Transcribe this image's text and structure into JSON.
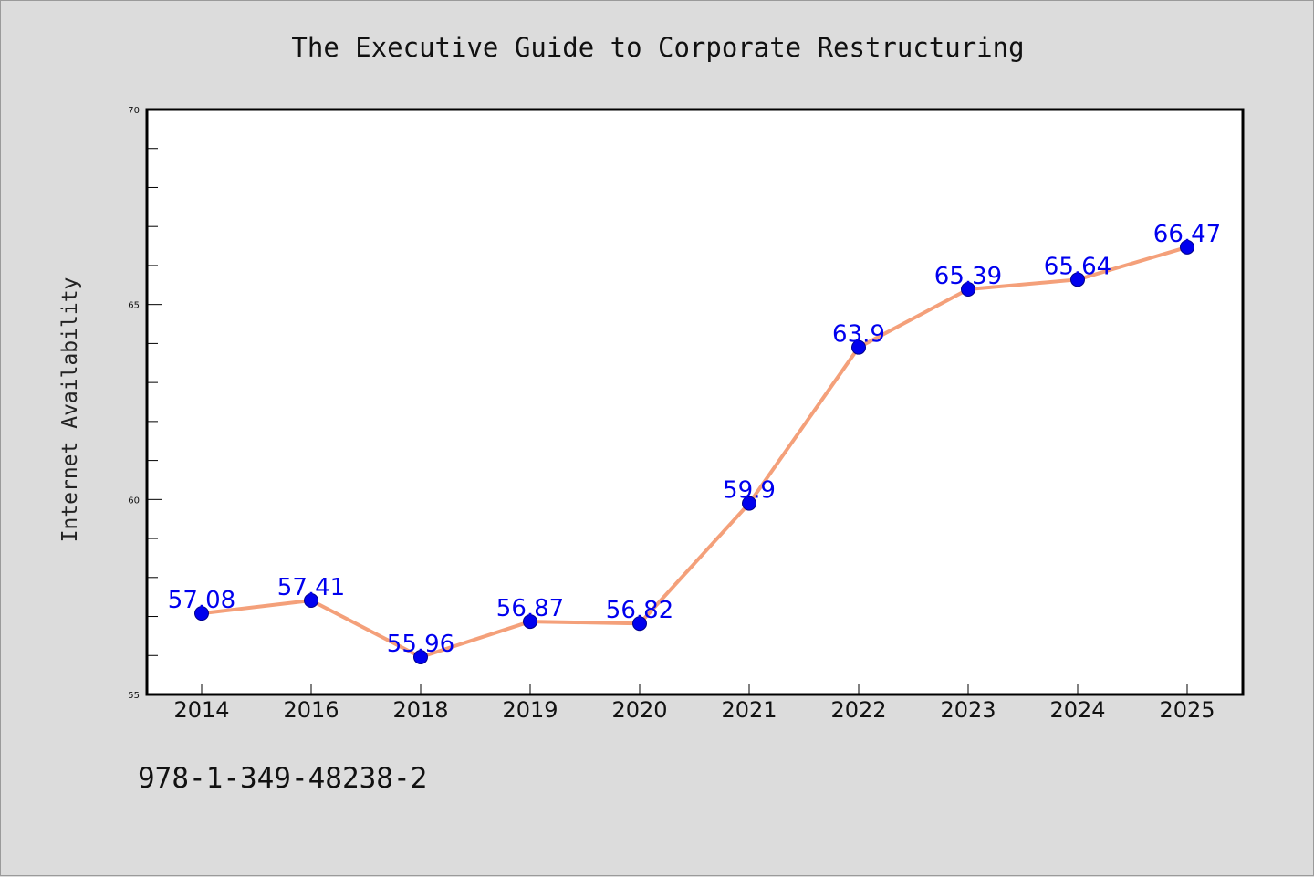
{
  "page": {
    "title": "The Executive Guide to Corporate Restructuring",
    "isbn": "978-1-349-48238-2"
  },
  "colors": {
    "background": "#dcdcdc",
    "plot_background": "#ffffff",
    "line": "#f4a07a",
    "marker": "#0000ee",
    "data_label": "#0000ee"
  },
  "chart_data": {
    "type": "line",
    "title": "The Executive Guide to Corporate Restructuring",
    "xlabel": "",
    "ylabel": "Internet Availability",
    "categories": [
      "2014",
      "2016",
      "2018",
      "2019",
      "2020",
      "2021",
      "2022",
      "2023",
      "2024",
      "2025"
    ],
    "series": [
      {
        "values": [
          57.08,
          57.41,
          55.96,
          56.87,
          56.82,
          59.9,
          63.9,
          65.39,
          65.64,
          66.47
        ],
        "labels": [
          "57.08",
          "57.41",
          "55.96",
          "56.87",
          "56.82",
          "59.9",
          "63.9",
          "65.39",
          "65.64",
          "66.47"
        ]
      }
    ],
    "ylim": [
      55,
      70
    ],
    "yticks": [
      55,
      60,
      65,
      70
    ],
    "grid": false,
    "legend": "none"
  }
}
